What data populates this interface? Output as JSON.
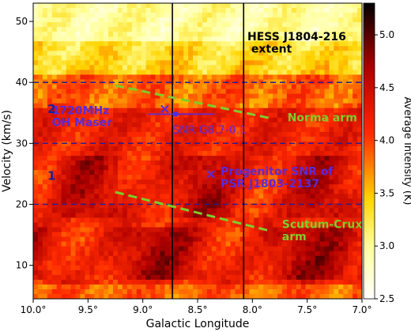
{
  "chart_data": {
    "type": "heatmap",
    "xlabel": "Galactic Longitude",
    "ylabel": "Velocity (km/s)",
    "colorbar_label": "Average Intensity (K)",
    "x_range": [
      10.0,
      7.0
    ],
    "y_range": [
      4.5,
      53
    ],
    "color_range": [
      2.5,
      5.3
    ],
    "x_ticks": [
      {
        "value": 10.0,
        "label": "10.0°"
      },
      {
        "value": 9.5,
        "label": "9.5°"
      },
      {
        "value": 9.0,
        "label": "9.0°"
      },
      {
        "value": 8.5,
        "label": "8.5°"
      },
      {
        "value": 8.0,
        "label": "8.0°"
      },
      {
        "value": 7.5,
        "label": "7.5°"
      },
      {
        "value": 7.0,
        "label": "7.0°"
      }
    ],
    "y_ticks": [
      {
        "value": 10,
        "label": "10"
      },
      {
        "value": 20,
        "label": "20"
      },
      {
        "value": 30,
        "label": "30"
      },
      {
        "value": 40,
        "label": "40"
      },
      {
        "value": 50,
        "label": "50"
      }
    ],
    "colorbar_ticks": [
      {
        "value": 2.5,
        "label": "2.5"
      },
      {
        "value": 3.0,
        "label": "3.0"
      },
      {
        "value": 3.5,
        "label": "3.5"
      },
      {
        "value": 4.0,
        "label": "4.0"
      },
      {
        "value": 4.5,
        "label": "4.5"
      },
      {
        "value": 5.0,
        "label": "5.0"
      }
    ],
    "colormap": "hot_r",
    "extent_lines": [
      {
        "value": 8.73
      },
      {
        "value": 8.08
      }
    ],
    "hess_label": [
      "HESS J1804-216",
      " extent"
    ],
    "velocity_bands": [
      {
        "value": 40
      },
      {
        "value": 30
      },
      {
        "value": 20
      }
    ],
    "band_labels": [
      {
        "text": "2",
        "x": 9.87,
        "y": 35
      },
      {
        "text": "1",
        "x": 9.87,
        "y": 24
      }
    ],
    "arms": [
      {
        "name": "Norma arm",
        "start": [
          9.25,
          39.5
        ],
        "end": [
          7.83,
          34.1
        ],
        "label": [
          "Norma arm"
        ],
        "label_at": [
          7.68,
          33.6
        ]
      },
      {
        "name": "Scutum-Crux arm",
        "start": [
          9.25,
          22.0
        ],
        "end": [
          7.83,
          15.6
        ],
        "label": [
          "Scutum-Crux",
          "arm"
        ],
        "label_at": [
          7.73,
          16.1
        ]
      }
    ],
    "annotations": [
      {
        "name": "oh-maser",
        "marker": "x",
        "x": 8.8,
        "y": 35.7,
        "label": [
          "1720MHz",
          "OH Maser"
        ],
        "label_at": [
          9.83,
          34.8
        ]
      },
      {
        "name": "progenitor-snr",
        "marker": "x",
        "x": 8.38,
        "y": 25,
        "label": [
          "Progenitor SNR of",
          "PSR J1803-2137"
        ],
        "label_at": [
          8.29,
          24.8
        ]
      }
    ],
    "snr_g87": {
      "center": [
        8.7,
        34.8
      ],
      "span": [
        8.95,
        8.35
      ],
      "label": "SNR G8.7-0.1",
      "label_at": [
        8.73,
        31.6
      ]
    },
    "colors": {
      "arms": "#7fcc2a",
      "bands": "#1f1f99",
      "annotation": "#5a2bd6",
      "extent": "#000000",
      "text": "#000000"
    }
  }
}
